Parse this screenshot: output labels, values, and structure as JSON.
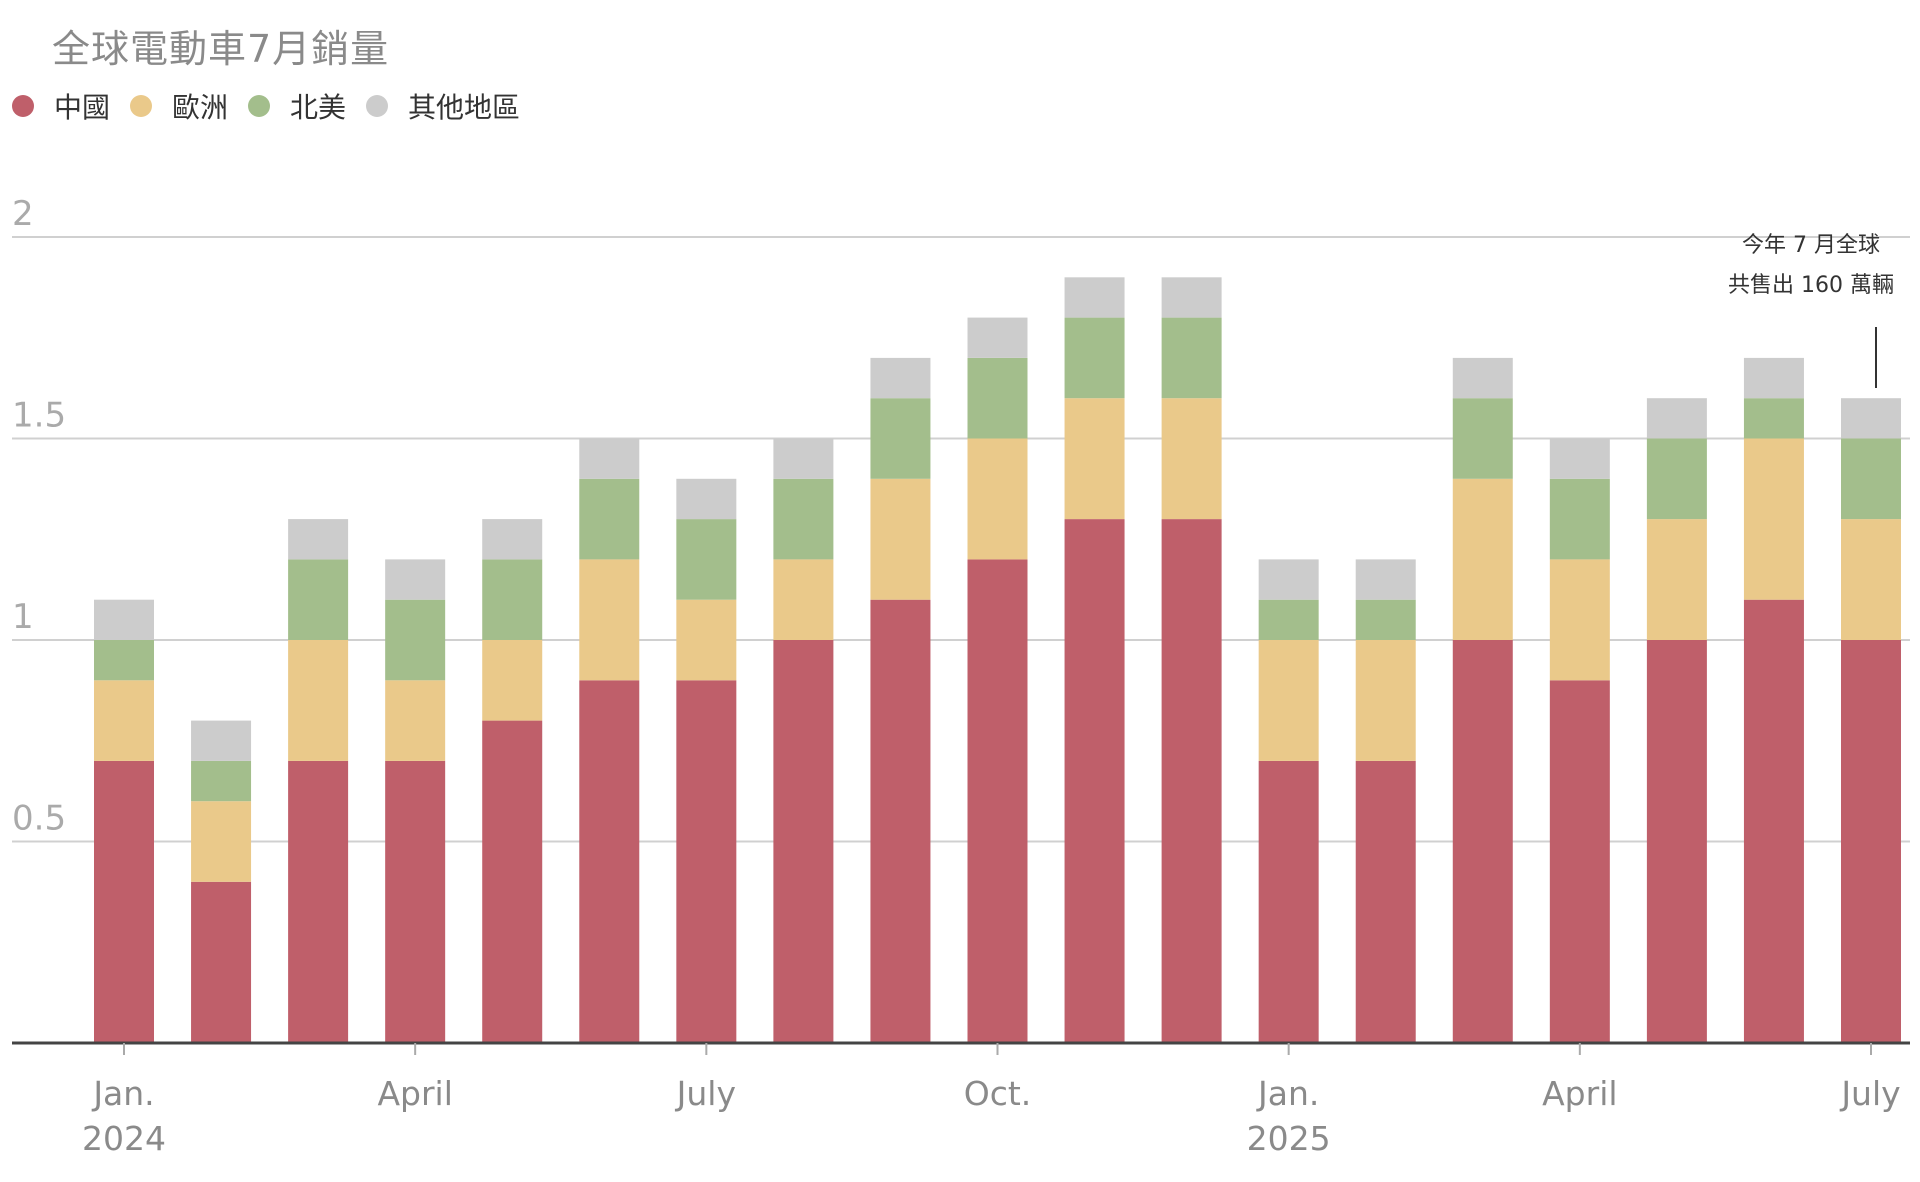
{
  "title": "全球電動車7月銷量",
  "colors": {
    "china": "#bf5f6a",
    "europe": "#eac98a",
    "north_america": "#a3be8c",
    "other": "#cccccc",
    "grid": "#d0d0d0",
    "axis": "#444444",
    "tick_text": "#8a8a8a"
  },
  "legend": [
    {
      "label": "中國",
      "color": "#bf5f6a"
    },
    {
      "label": "歐洲",
      "color": "#eac98a"
    },
    {
      "label": "北美",
      "color": "#a3be8c"
    },
    {
      "label": "其他地區",
      "color": "#cccccc"
    }
  ],
  "annotation": {
    "line1": "今年 7 月全球",
    "line2": "共售出 160 萬輛"
  },
  "chart_data": {
    "type": "bar",
    "stacked": true,
    "title": "全球電動車7月銷量",
    "xlabel": "",
    "ylabel": "",
    "ylim": [
      0,
      2
    ],
    "yticks": [
      "0.5",
      "1",
      "1.5",
      "2"
    ],
    "ytick_values": [
      0.5,
      1,
      1.5,
      2
    ],
    "categories": [
      "2024-01",
      "2024-02",
      "2024-03",
      "2024-04",
      "2024-05",
      "2024-06",
      "2024-07",
      "2024-08",
      "2024-09",
      "2024-10",
      "2024-11",
      "2024-12",
      "2025-01",
      "2025-02",
      "2025-03",
      "2025-04",
      "2025-05",
      "2025-06",
      "2025-07"
    ],
    "xtick_labels": [
      {
        "category": "2024-01",
        "line1": "Jan.",
        "line2": "2024"
      },
      {
        "category": "2024-04",
        "line1": "April",
        "line2": ""
      },
      {
        "category": "2024-07",
        "line1": "July",
        "line2": ""
      },
      {
        "category": "2024-10",
        "line1": "Oct.",
        "line2": ""
      },
      {
        "category": "2025-01",
        "line1": "Jan.",
        "line2": "2025"
      },
      {
        "category": "2025-04",
        "line1": "April",
        "line2": ""
      },
      {
        "category": "2025-07",
        "line1": "July",
        "line2": ""
      }
    ],
    "series": [
      {
        "name": "中國",
        "color": "#bf5f6a",
        "values": [
          0.7,
          0.4,
          0.7,
          0.7,
          0.8,
          0.9,
          0.9,
          1.0,
          1.1,
          1.2,
          1.3,
          1.3,
          0.7,
          0.7,
          1.0,
          0.9,
          1.0,
          1.1,
          1.0
        ]
      },
      {
        "name": "歐洲",
        "color": "#eac98a",
        "values": [
          0.2,
          0.2,
          0.3,
          0.2,
          0.2,
          0.3,
          0.2,
          0.2,
          0.3,
          0.3,
          0.3,
          0.3,
          0.3,
          0.3,
          0.4,
          0.3,
          0.3,
          0.4,
          0.3
        ]
      },
      {
        "name": "北美",
        "color": "#a3be8c",
        "values": [
          0.1,
          0.1,
          0.2,
          0.2,
          0.2,
          0.2,
          0.2,
          0.2,
          0.2,
          0.2,
          0.2,
          0.2,
          0.1,
          0.1,
          0.2,
          0.2,
          0.2,
          0.1,
          0.2
        ]
      },
      {
        "name": "其他地區",
        "color": "#cccccc",
        "values": [
          0.1,
          0.1,
          0.1,
          0.1,
          0.1,
          0.1,
          0.1,
          0.1,
          0.1,
          0.1,
          0.1,
          0.1,
          0.1,
          0.1,
          0.1,
          0.1,
          0.1,
          0.1,
          0.1
        ]
      }
    ]
  }
}
